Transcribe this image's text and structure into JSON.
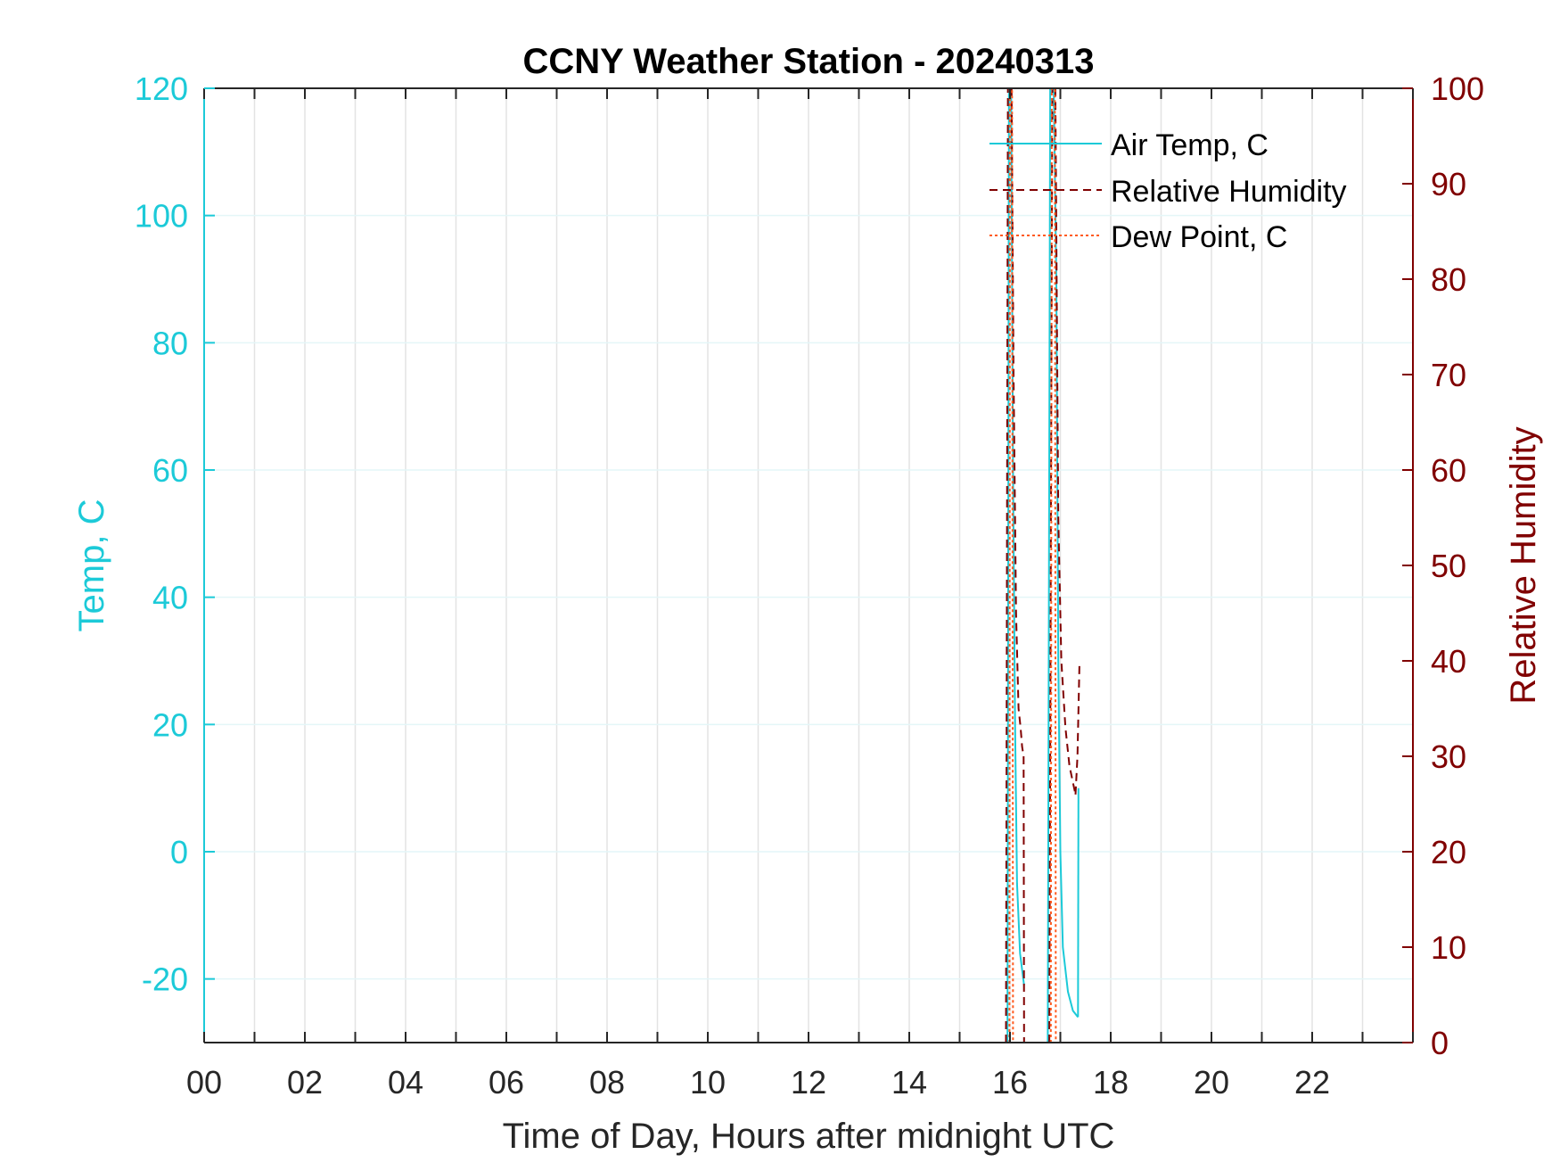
{
  "chart_data": {
    "type": "line",
    "title": "CCNY Weather Station - 20240313",
    "xlabel": "Time of Day, Hours after midnight UTC",
    "ylabel_left": "Temp, C",
    "ylabel_right": "Relative Humidity",
    "xlim": [
      0,
      24
    ],
    "ylim_left": [
      -30,
      120
    ],
    "ylim_right": [
      0,
      100
    ],
    "x_ticks": [
      0,
      2,
      4,
      6,
      8,
      10,
      12,
      14,
      16,
      18,
      20,
      22
    ],
    "x_tick_labels": [
      "00",
      "02",
      "04",
      "06",
      "08",
      "10",
      "12",
      "14",
      "16",
      "18",
      "20",
      "22"
    ],
    "y_left_ticks": [
      120,
      100,
      80,
      60,
      40,
      20,
      0,
      -20
    ],
    "y_left_tick_labels": [
      "120",
      "100",
      "80",
      "60",
      "40",
      "20",
      "0",
      "-20"
    ],
    "y_right_ticks": [
      100,
      90,
      80,
      70,
      60,
      50,
      40,
      30,
      20,
      10,
      0
    ],
    "y_right_tick_labels": [
      "100",
      "90",
      "80",
      "70",
      "60",
      "50",
      "40",
      "30",
      "20",
      "10",
      "0"
    ],
    "grid": true,
    "legend_position": "top-right",
    "colors": {
      "left_axis": "#1ccad8",
      "right_axis": "#800000",
      "dew_point": "#ff5a1f",
      "grid": "#e3e3e3",
      "axis": "#262626"
    },
    "series": [
      {
        "name": "Air Temp, C",
        "axis": "left",
        "style": "solid",
        "segments": [
          {
            "x": [
              15.95,
              15.98,
              16.02,
              16.06,
              16.1,
              16.14,
              16.2,
              16.28
            ],
            "y": [
              -30,
              125,
              125,
              60,
              20,
              -5,
              -16,
              -21
            ]
          },
          {
            "x": [
              16.75,
              16.8,
              16.86,
              16.92,
              16.96,
              17.0,
              17.05,
              17.15,
              17.25,
              17.35
            ],
            "y": [
              -30,
              125,
              125,
              90,
              30,
              0,
              -15,
              -22,
              -25,
              -26
            ]
          },
          {
            "x": [
              17.35,
              17.36
            ],
            "y": [
              -26,
              10
            ]
          }
        ]
      },
      {
        "name": "Relative Humidity",
        "axis": "right",
        "style": "dashed",
        "segments": [
          {
            "x": [
              15.92,
              15.96,
              16.03,
              16.07,
              16.12,
              16.17,
              16.21,
              16.24,
              16.27
            ],
            "y": [
              0,
              101,
              101,
              70,
              45,
              35,
              33,
              31,
              30
            ]
          },
          {
            "x": [
              16.27,
              16.28
            ],
            "y": [
              30,
              0
            ]
          },
          {
            "x": [
              16.78,
              16.84,
              16.9,
              16.96,
              17.02,
              17.1,
              17.18,
              17.26,
              17.3
            ],
            "y": [
              0,
              101,
              101,
              55,
              40,
              33,
              29,
              27,
              26
            ]
          },
          {
            "x": [
              17.3,
              17.34,
              17.38
            ],
            "y": [
              26,
              30,
              40
            ]
          }
        ]
      },
      {
        "name": "Dew Point, C",
        "axis": "left",
        "style": "dotted",
        "segments": [
          {
            "x": [
              15.99,
              16.0,
              16.04,
              16.06
            ],
            "y": [
              -30,
              125,
              125,
              -30
            ]
          },
          {
            "x": [
              16.81,
              16.83,
              16.89,
              16.91
            ],
            "y": [
              -30,
              125,
              125,
              -30
            ]
          }
        ]
      }
    ]
  }
}
